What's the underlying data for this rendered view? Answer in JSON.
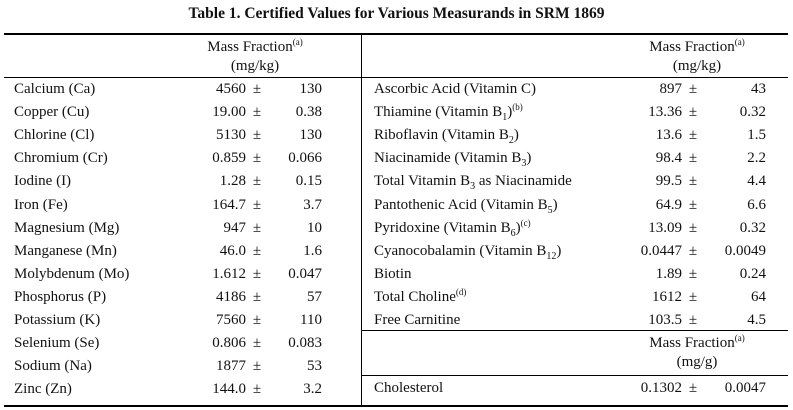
{
  "title": "Table 1.  Certified Values for Various Measurands in SRM 1869",
  "left": {
    "header_line1": "Mass Fraction",
    "header_note": "(a)",
    "header_line2": "(mg/kg)",
    "rows": [
      {
        "name": "Calcium (Ca)",
        "value": "4560",
        "pm": "±",
        "unc": "130"
      },
      {
        "name": "Copper (Cu)",
        "value": "19.00",
        "pm": "±",
        "unc": "0.38"
      },
      {
        "name": "Chlorine (Cl)",
        "value": "5130",
        "pm": "±",
        "unc": "130"
      },
      {
        "name": "Chromium (Cr)",
        "value": "0.859",
        "pm": "±",
        "unc": "0.066"
      },
      {
        "name": "Iodine (I)",
        "value": "1.28",
        "pm": "±",
        "unc": "0.15"
      },
      {
        "name": "Iron (Fe)",
        "value": "164.7",
        "pm": "±",
        "unc": "3.7"
      },
      {
        "name": "Magnesium (Mg)",
        "value": "947",
        "pm": "±",
        "unc": "10"
      },
      {
        "name": "Manganese (Mn)",
        "value": "46.0",
        "pm": "±",
        "unc": "1.6"
      },
      {
        "name": "Molybdenum (Mo)",
        "value": "1.612",
        "pm": "±",
        "unc": "0.047"
      },
      {
        "name": "Phosphorus (P)",
        "value": "4186",
        "pm": "±",
        "unc": "57"
      },
      {
        "name": "Potassium (K)",
        "value": "7560",
        "pm": "±",
        "unc": "110"
      },
      {
        "name": "Selenium (Se)",
        "value": "0.806",
        "pm": "±",
        "unc": "0.083"
      },
      {
        "name": "Sodium (Na)",
        "value": "1877",
        "pm": "±",
        "unc": "53"
      },
      {
        "name": "Zinc (Zn)",
        "value": "144.0",
        "pm": "±",
        "unc": "3.2"
      }
    ]
  },
  "right": {
    "header_line1": "Mass Fraction",
    "header_note": "(a)",
    "header_line2": "(mg/kg)",
    "rows": [
      {
        "name": "Ascorbic Acid (Vitamin C)",
        "value": "897",
        "pm": "±",
        "unc": "43"
      },
      {
        "name": "Thiamine (Vitamin B",
        "sub": "1",
        "name_end": ")",
        "note": "(b)",
        "value": "13.36",
        "pm": "±",
        "unc": "0.32"
      },
      {
        "name": "Riboflavin (Vitamin B",
        "sub": "2",
        "name_end": ")",
        "value": "13.6",
        "pm": "±",
        "unc": "1.5"
      },
      {
        "name": "Niacinamide (Vitamin B",
        "sub": "3",
        "name_end": ")",
        "value": "98.4",
        "pm": "±",
        "unc": "2.2"
      },
      {
        "name": "Total Vitamin B",
        "sub": "3",
        "name_end": " as Niacinamide",
        "value": "99.5",
        "pm": "±",
        "unc": "4.4"
      },
      {
        "name": "Pantothenic Acid (Vitamin B",
        "sub": "5",
        "name_end": ")",
        "value": "64.9",
        "pm": "±",
        "unc": "6.6"
      },
      {
        "name": "Pyridoxine (Vitamin B",
        "sub": "6",
        "name_end": ")",
        "note": "(c)",
        "value": "13.09",
        "pm": "±",
        "unc": "0.32"
      },
      {
        "name": "Cyanocobalamin (Vitamin B",
        "sub": "12",
        "name_end": ")",
        "value": "0.0447",
        "pm": "±",
        "unc": "0.0049"
      },
      {
        "name": "Biotin",
        "value": "1.89",
        "pm": "±",
        "unc": "0.24"
      },
      {
        "name": "Total Choline",
        "note": "(d)",
        "value": "1612",
        "pm": "±",
        "unc": "64"
      },
      {
        "name": "Free Carnitine",
        "value": "103.5",
        "pm": "±",
        "unc": "4.5"
      }
    ],
    "header2_line1": "Mass Fraction",
    "header2_note": "(a)",
    "header2_line2": "(mg/g)",
    "row2": {
      "name": "Cholesterol",
      "value": "0.1302",
      "pm": "±",
      "unc": "0.0047"
    }
  }
}
